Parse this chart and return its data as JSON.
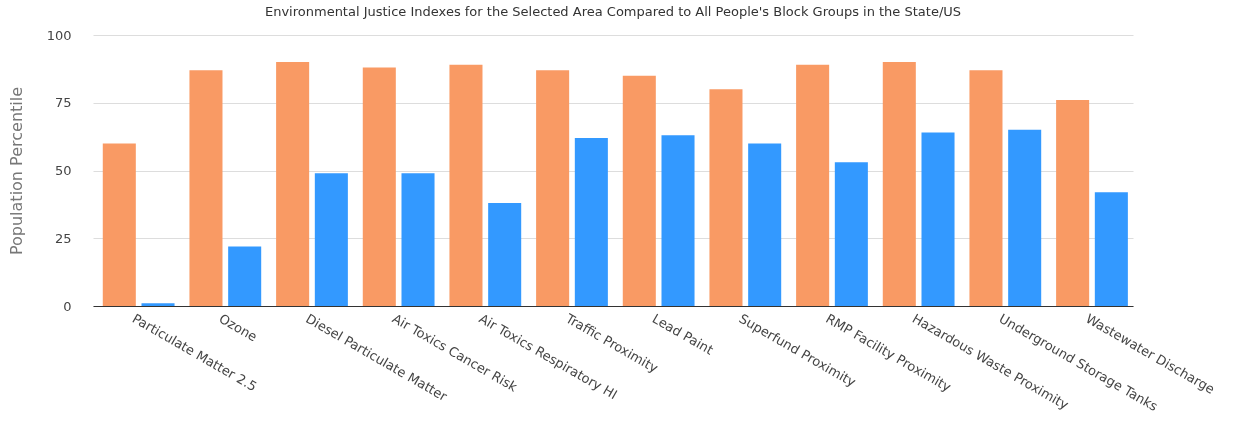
{
  "chart_data": {
    "type": "bar",
    "title": "Environmental Justice Indexes for the Selected Area Compared to All People's Block Groups in the State/US",
    "ylabel": "Population Percentile",
    "categories": [
      "Particulate Matter 2.5",
      "Ozone",
      "Diesel Particulate Matter",
      "Air Toxics Cancer Risk",
      "Air Toxics Respiratory HI",
      "Traffic Proximity",
      "Lead Paint",
      "Superfund Proximity",
      "RMP Facility Proximity",
      "Hazardous Waste Proximity",
      "Underground Storage Tanks",
      "Wastewater Discharge"
    ],
    "series": [
      {
        "color": "#f99a64",
        "values": [
          60,
          87,
          90,
          88,
          89,
          87,
          85,
          80,
          89,
          90,
          87,
          76
        ]
      },
      {
        "color": "#3399ff",
        "values": [
          1,
          22,
          49,
          49,
          38,
          62,
          63,
          60,
          53,
          64,
          65,
          42
        ]
      }
    ],
    "ylim": [
      0,
      100
    ],
    "yticks": [
      0,
      25,
      50,
      75,
      100
    ],
    "grid": "y"
  }
}
